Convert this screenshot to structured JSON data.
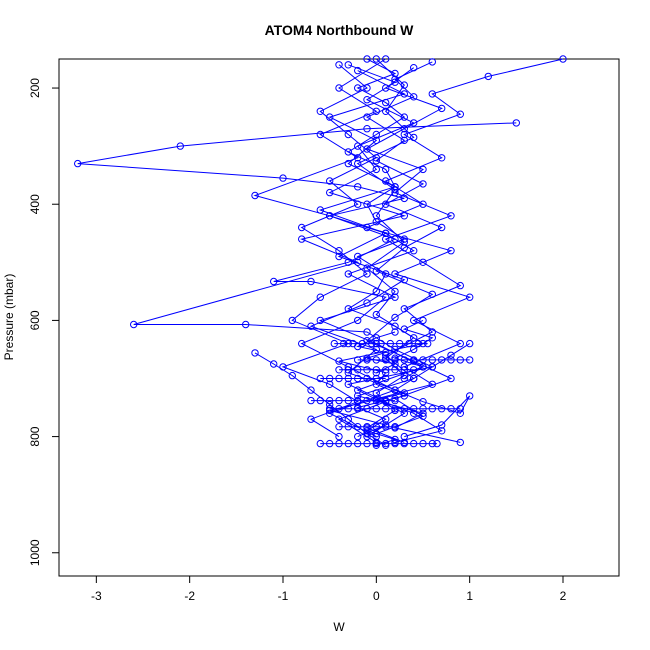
{
  "chart_data": {
    "type": "scatter",
    "title": "ATOM4 Northbound W",
    "xlabel": "W",
    "ylabel": "Pressure (mbar)",
    "xlim": [
      -3.4,
      2.6
    ],
    "ylim": [
      1040,
      150
    ],
    "y_reversed": true,
    "x_ticks": [
      -3,
      -2,
      -1,
      0,
      1,
      2
    ],
    "x_tick_labels": [
      "-3",
      "-2",
      "-1",
      "0",
      "1",
      "2"
    ],
    "y_ticks": [
      200,
      400,
      600,
      800,
      1000
    ],
    "y_tick_labels": [
      "200",
      "400",
      "600",
      "800",
      "1000"
    ],
    "grid": false,
    "legend": "none",
    "marker": "open-circle",
    "connected": true,
    "series_color": "#0000ff",
    "series": [
      {
        "x": [
          -0.1,
          0.2,
          -0.2,
          0.1,
          0.3,
          0.0,
          -0.3,
          0.1,
          0.2,
          -0.1,
          0.0,
          0.3,
          -0.2,
          0.1,
          0.0,
          -0.3,
          0.2,
          0.5,
          -0.4,
          0.1,
          0.0,
          0.3,
          -0.2,
          0.1,
          -0.1,
          0.2,
          0.0
        ],
        "y": [
          150,
          175,
          200,
          225,
          250,
          280,
          310,
          340,
          370,
          400,
          430,
          460,
          490,
          520,
          550,
          580,
          610,
          640,
          670,
          690,
          710,
          730,
          750,
          770,
          790,
          805,
          815
        ]
      },
      {
        "x": [
          1.5,
          -0.1,
          -2.1,
          -3.2,
          -1.0,
          -0.2,
          0.3,
          -0.5,
          0.1,
          0.4,
          -0.3,
          0.2,
          -0.6,
          0.0,
          0.5,
          -0.2,
          0.3,
          -0.1
        ],
        "y": [
          260,
          270,
          300,
          330,
          355,
          370,
          390,
          420,
          450,
          480,
          520,
          560,
          600,
          640,
          680,
          720,
          760,
          800
        ]
      },
      {
        "x": [
          -0.3,
          0.2,
          -0.1,
          0.4,
          -0.2,
          0.0,
          -0.5,
          0.3,
          -0.8,
          -0.2,
          -2.6,
          -1.4,
          -0.1,
          0.2,
          0.6,
          -0.3,
          0.1,
          -0.4,
          0.0
        ],
        "y": [
          160,
          190,
          220,
          260,
          300,
          340,
          380,
          420,
          460,
          500,
          607,
          607,
          620,
          650,
          680,
          710,
          740,
          770,
          810
        ]
      },
      {
        "x": [
          2.0,
          1.2,
          0.6,
          0.9,
          0.3,
          0.7,
          0.1,
          0.5,
          -0.1,
          0.8,
          0.2,
          1.0,
          0.4,
          0.9,
          0.3,
          0.6,
          0.0,
          0.4,
          0.7,
          0.2
        ],
        "y": [
          150,
          180,
          210,
          245,
          280,
          320,
          360,
          400,
          440,
          480,
          520,
          560,
          600,
          640,
          680,
          710,
          735,
          760,
          790,
          810
        ]
      },
      {
        "x": [
          0.1,
          -0.4,
          0.0,
          -0.6,
          -0.2,
          -1.3,
          -0.5,
          0.2,
          -0.3,
          -1.1,
          -0.7,
          0.1,
          -0.2,
          -0.8,
          -0.3,
          0.2,
          -0.5,
          0.0
        ],
        "y": [
          150,
          200,
          240,
          280,
          320,
          385,
          420,
          460,
          500,
          533,
          533,
          560,
          600,
          640,
          680,
          720,
          760,
          800
        ]
      },
      {
        "x": [
          0.4,
          0.1,
          0.7,
          0.3,
          -0.1,
          0.5,
          0.2,
          0.8,
          0.1,
          0.5,
          0.9,
          0.3,
          0.6,
          0.1,
          0.4,
          -0.2,
          0.5,
          0.2,
          0.9
        ],
        "y": [
          165,
          200,
          235,
          270,
          305,
          340,
          380,
          420,
          460,
          500,
          540,
          580,
          620,
          660,
          700,
          730,
          760,
          785,
          810
        ]
      },
      {
        "x": [
          -0.2,
          0.3,
          -0.5,
          0.0,
          -0.3,
          0.2,
          -0.6,
          0.1,
          -0.4,
          0.3,
          -0.1,
          -0.7,
          0.0,
          -0.3,
          0.3,
          -0.5,
          0.1,
          -0.2
        ],
        "y": [
          170,
          210,
          250,
          290,
          330,
          370,
          410,
          450,
          490,
          530,
          570,
          610,
          650,
          690,
          725,
          755,
          780,
          800
        ]
      },
      {
        "x": [
          0.6,
          0.2,
          0.4,
          -0.1,
          0.3,
          0.0,
          0.5,
          0.1,
          0.7,
          0.3,
          0.0,
          0.6,
          0.2,
          -0.1,
          0.4,
          0.8,
          0.2,
          0.5,
          0.0
        ],
        "y": [
          155,
          185,
          215,
          250,
          290,
          325,
          365,
          400,
          440,
          475,
          515,
          555,
          595,
          635,
          670,
          700,
          735,
          765,
          795
        ]
      },
      {
        "x": [
          -0.4,
          -0.1,
          -0.6,
          -0.3,
          0.0,
          -0.5,
          -0.2,
          -0.8,
          -0.4,
          -0.1,
          -0.6,
          -0.9,
          -0.3,
          -1.0,
          -0.5,
          -0.2,
          -0.7,
          -0.4
        ],
        "y": [
          160,
          200,
          240,
          280,
          320,
          360,
          400,
          440,
          480,
          520,
          560,
          600,
          640,
          680,
          710,
          740,
          770,
          800
        ]
      },
      {
        "x": [
          0.0,
          0.3,
          0.1,
          0.4,
          -0.2,
          0.2,
          0.0,
          0.3,
          -0.1,
          0.2,
          0.0,
          0.4,
          0.1,
          0.3,
          0.0,
          0.2,
          -0.1,
          0.3
        ],
        "y": [
          150,
          195,
          240,
          285,
          330,
          375,
          420,
          465,
          510,
          550,
          590,
          630,
          665,
          695,
          725,
          755,
          785,
          810
        ]
      },
      {
        "x": [
          -0.15,
          -0.05,
          0.05,
          0.15,
          0.25,
          0.35,
          0.45,
          0.55,
          -0.25,
          -0.35,
          -0.45
        ],
        "y": [
          640,
          640,
          640,
          640,
          640,
          640,
          640,
          640,
          640,
          640,
          640
        ]
      },
      {
        "x": [
          -0.2,
          -0.1,
          0.0,
          0.1,
          0.2,
          0.3,
          0.4,
          0.5,
          0.6,
          0.7,
          0.8,
          0.9,
          1.0
        ],
        "y": [
          668,
          668,
          668,
          668,
          668,
          668,
          668,
          668,
          668,
          668,
          668,
          668,
          668
        ]
      },
      {
        "x": [
          -0.4,
          -0.3,
          -0.2,
          -0.1,
          0.0,
          0.1,
          0.2,
          0.3,
          0.4
        ],
        "y": [
          685,
          685,
          685,
          685,
          685,
          685,
          685,
          685,
          685
        ]
      },
      {
        "x": [
          -0.6,
          -0.5,
          -0.4,
          -0.3,
          -0.2,
          -0.1,
          0.0,
          0.1
        ],
        "y": [
          700,
          700,
          700,
          700,
          700,
          700,
          700,
          700
        ]
      },
      {
        "x": [
          -0.7,
          -0.6,
          -0.5,
          -0.4,
          -0.3,
          -0.2,
          -0.1,
          0.0,
          0.1,
          0.2
        ],
        "y": [
          738,
          738,
          738,
          738,
          738,
          738,
          738,
          738,
          738,
          738
        ]
      },
      {
        "x": [
          -0.5,
          -0.4,
          -0.3,
          -0.2,
          -0.1,
          0.0,
          0.1,
          0.2,
          0.3,
          0.4,
          0.5,
          0.6,
          0.7,
          0.8,
          0.9
        ],
        "y": [
          752,
          752,
          752,
          752,
          752,
          752,
          752,
          752,
          752,
          752,
          752,
          752,
          752,
          752,
          752
        ]
      },
      {
        "x": [
          -0.4,
          -0.3,
          -0.2,
          -0.1,
          0.0,
          0.1,
          0.2
        ],
        "y": [
          783,
          783,
          783,
          783,
          783,
          783,
          783
        ]
      },
      {
        "x": [
          -0.6,
          -0.5,
          -0.4,
          -0.3,
          -0.2,
          -0.1,
          0.0,
          0.1,
          0.2,
          0.3,
          0.4,
          0.5,
          0.6,
          0.65
        ],
        "y": [
          812,
          812,
          812,
          812,
          812,
          812,
          812,
          812,
          812,
          812,
          812,
          812,
          812,
          812
        ]
      },
      {
        "x": [
          -1.3,
          -1.1,
          -0.9,
          -0.7,
          -0.5,
          -0.3,
          -0.1,
          0.1
        ],
        "y": [
          656,
          675,
          695,
          720,
          745,
          770,
          795,
          815
        ]
      },
      {
        "x": [
          1.0,
          0.8,
          0.6,
          0.4,
          0.2,
          0.5,
          0.9,
          1.0,
          0.7,
          0.3
        ],
        "y": [
          640,
          660,
          680,
          700,
          720,
          740,
          760,
          730,
          780,
          800
        ]
      },
      {
        "x": [
          0.2,
          0.0,
          -0.2,
          0.1,
          -0.1,
          0.2,
          0.0
        ],
        "y": [
          620,
          630,
          645,
          655,
          665,
          675,
          690
        ]
      },
      {
        "x": [
          0.5,
          0.3,
          0.6,
          0.4,
          0.2,
          0.5,
          0.3
        ],
        "y": [
          600,
          615,
          630,
          650,
          665,
          680,
          700
        ]
      }
    ]
  }
}
